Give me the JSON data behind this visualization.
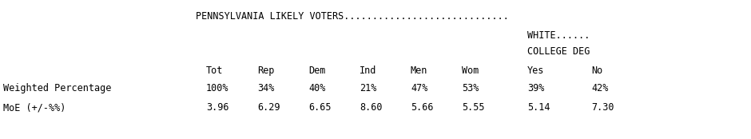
{
  "title_line": "PENNSYLVANIA LIKELY VOTERS.............................",
  "subtitle1": "WHITE......",
  "subtitle2": "COLLEGE DEG",
  "col_headers": [
    "Tot",
    "Rep",
    "Dem",
    "Ind",
    "Men",
    "Wom",
    "Yes",
    "No"
  ],
  "row1_label": "Weighted Percentage",
  "row1_values": [
    "100%",
    "34%",
    "40%",
    "21%",
    "47%",
    "53%",
    "39%",
    "42%"
  ],
  "row2_label": "MoE (+/-%%)",
  "row2_values": [
    "3.96",
    "6.29",
    "6.65",
    "8.60",
    "5.66",
    "5.55",
    "5.14",
    "7.30"
  ],
  "bg_color": "#ffffff",
  "text_color": "#000000",
  "font_family": "monospace",
  "font_size": 8.5,
  "fig_width": 9.4,
  "fig_height": 1.74,
  "dpi": 100
}
